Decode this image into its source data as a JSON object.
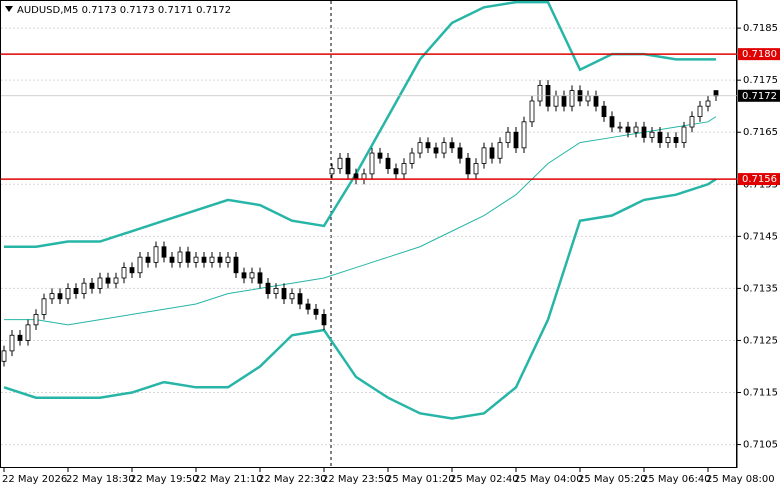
{
  "chart_data": {
    "type": "candlestick",
    "title": "AUDUSD,M5  0.7173 0.7173 0.7171 0.7172",
    "categories": [
      "22 May 2026",
      null,
      null,
      null,
      null,
      null,
      null,
      null,
      "22 May 18:30",
      null,
      null,
      null,
      null,
      null,
      null,
      null,
      "22 May 19:50",
      null,
      null,
      null,
      null,
      null,
      null,
      null,
      "22 May 21:10",
      null,
      null,
      null,
      null,
      null,
      null,
      null,
      "22 May 22:30",
      null,
      null,
      null,
      null,
      null,
      null,
      null,
      "22 May 23:50",
      null,
      null,
      null,
      null,
      null,
      null,
      null,
      "25 May 01:20",
      null,
      null,
      null,
      null,
      null,
      null,
      null,
      "25 May 02:40",
      null,
      null,
      null,
      null,
      null,
      null,
      null,
      "25 May 04:00",
      null,
      null,
      null,
      null,
      null,
      null,
      null,
      "25 May 05:20",
      null,
      null,
      null,
      null,
      null,
      null,
      null,
      "25 May 06:40",
      null,
      null,
      null,
      null,
      null,
      null,
      null,
      "25 May 08:00",
      null
    ],
    "candles": [
      [
        0.7121,
        0.7124,
        0.712,
        0.7123
      ],
      [
        0.7123,
        0.7127,
        0.7122,
        0.7126
      ],
      [
        0.7126,
        0.7127,
        0.7124,
        0.7125
      ],
      [
        0.7125,
        0.7129,
        0.7124,
        0.7128
      ],
      [
        0.7128,
        0.7131,
        0.7127,
        0.713
      ],
      [
        0.713,
        0.7134,
        0.7129,
        0.7133
      ],
      [
        0.7133,
        0.7135,
        0.7132,
        0.7134
      ],
      [
        0.7134,
        0.7135,
        0.7132,
        0.7133
      ],
      [
        0.7133,
        0.7136,
        0.7132,
        0.7135
      ],
      [
        0.7135,
        0.7136,
        0.7133,
        0.7134
      ],
      [
        0.7134,
        0.7137,
        0.7133,
        0.7136
      ],
      [
        0.7136,
        0.7137,
        0.7134,
        0.7135
      ],
      [
        0.7135,
        0.7138,
        0.7134,
        0.7137
      ],
      [
        0.7137,
        0.7138,
        0.7135,
        0.7136
      ],
      [
        0.7136,
        0.7138,
        0.7135,
        0.7137
      ],
      [
        0.7137,
        0.714,
        0.7136,
        0.7139
      ],
      [
        0.7139,
        0.714,
        0.7137,
        0.7138
      ],
      [
        0.7138,
        0.7142,
        0.7137,
        0.7141
      ],
      [
        0.7141,
        0.7142,
        0.7139,
        0.714
      ],
      [
        0.714,
        0.7144,
        0.7139,
        0.7143
      ],
      [
        0.7143,
        0.7144,
        0.714,
        0.7141
      ],
      [
        0.7141,
        0.7142,
        0.7139,
        0.714
      ],
      [
        0.714,
        0.7143,
        0.7139,
        0.7142
      ],
      [
        0.7142,
        0.7143,
        0.7139,
        0.714
      ],
      [
        0.714,
        0.7142,
        0.7139,
        0.7141
      ],
      [
        0.7141,
        0.7142,
        0.7139,
        0.714
      ],
      [
        0.714,
        0.7142,
        0.7139,
        0.7141
      ],
      [
        0.7141,
        0.7142,
        0.7139,
        0.714
      ],
      [
        0.714,
        0.7142,
        0.7139,
        0.7141
      ],
      [
        0.7141,
        0.7142,
        0.7137,
        0.7138
      ],
      [
        0.7138,
        0.7139,
        0.7136,
        0.7137
      ],
      [
        0.7137,
        0.7139,
        0.7136,
        0.7138
      ],
      [
        0.7138,
        0.7139,
        0.7135,
        0.7136
      ],
      [
        0.7136,
        0.7137,
        0.7133,
        0.7134
      ],
      [
        0.7134,
        0.7136,
        0.7133,
        0.7135
      ],
      [
        0.7135,
        0.7136,
        0.7132,
        0.7133
      ],
      [
        0.7133,
        0.7135,
        0.7132,
        0.7134
      ],
      [
        0.7134,
        0.7135,
        0.7131,
        0.7132
      ],
      [
        0.7132,
        0.7133,
        0.713,
        0.7131
      ],
      [
        0.7131,
        0.7132,
        0.7129,
        0.713
      ],
      [
        0.713,
        0.7131,
        0.7127,
        0.7128
      ],
      [
        0.7157,
        0.7159,
        0.7156,
        0.7158
      ],
      [
        0.7158,
        0.7161,
        0.7157,
        0.716
      ],
      [
        0.716,
        0.7161,
        0.7156,
        0.7157
      ],
      [
        0.7157,
        0.7158,
        0.7155,
        0.7156
      ],
      [
        0.7156,
        0.7158,
        0.7155,
        0.7157
      ],
      [
        0.7157,
        0.7162,
        0.7156,
        0.7161
      ],
      [
        0.7161,
        0.7162,
        0.7159,
        0.716
      ],
      [
        0.716,
        0.7161,
        0.7157,
        0.7158
      ],
      [
        0.7158,
        0.7159,
        0.7156,
        0.7157
      ],
      [
        0.7157,
        0.716,
        0.7156,
        0.7159
      ],
      [
        0.7159,
        0.7162,
        0.7158,
        0.7161
      ],
      [
        0.7161,
        0.7164,
        0.716,
        0.7163
      ],
      [
        0.7163,
        0.7164,
        0.7161,
        0.7162
      ],
      [
        0.7162,
        0.7163,
        0.716,
        0.7161
      ],
      [
        0.7161,
        0.7164,
        0.716,
        0.7163
      ],
      [
        0.7163,
        0.7164,
        0.7161,
        0.7162
      ],
      [
        0.7162,
        0.7163,
        0.7159,
        0.716
      ],
      [
        0.716,
        0.7161,
        0.7156,
        0.7157
      ],
      [
        0.7157,
        0.716,
        0.7156,
        0.7159
      ],
      [
        0.7159,
        0.7163,
        0.7158,
        0.7162
      ],
      [
        0.7162,
        0.7163,
        0.7159,
        0.716
      ],
      [
        0.716,
        0.7164,
        0.7159,
        0.7163
      ],
      [
        0.7163,
        0.7166,
        0.7162,
        0.7165
      ],
      [
        0.7165,
        0.7166,
        0.7161,
        0.7162
      ],
      [
        0.7162,
        0.7168,
        0.7161,
        0.7167
      ],
      [
        0.7167,
        0.7172,
        0.7166,
        0.7171
      ],
      [
        0.7171,
        0.7175,
        0.717,
        0.7174
      ],
      [
        0.7174,
        0.7175,
        0.7169,
        0.717
      ],
      [
        0.717,
        0.7173,
        0.7169,
        0.7172
      ],
      [
        0.7172,
        0.7173,
        0.7169,
        0.717
      ],
      [
        0.717,
        0.7174,
        0.7169,
        0.7173
      ],
      [
        0.7173,
        0.7174,
        0.717,
        0.7171
      ],
      [
        0.7171,
        0.7173,
        0.717,
        0.7172
      ],
      [
        0.7172,
        0.7173,
        0.7169,
        0.717
      ],
      [
        0.717,
        0.7171,
        0.7167,
        0.7168
      ],
      [
        0.7168,
        0.7169,
        0.7165,
        0.7166
      ],
      [
        0.7166,
        0.7167,
        0.7165,
        0.7166
      ],
      [
        0.7166,
        0.7167,
        0.7164,
        0.7165
      ],
      [
        0.7165,
        0.7167,
        0.7164,
        0.7166
      ],
      [
        0.7166,
        0.7167,
        0.7163,
        0.7164
      ],
      [
        0.7164,
        0.7166,
        0.7163,
        0.7165
      ],
      [
        0.7165,
        0.7166,
        0.7162,
        0.7163
      ],
      [
        0.7163,
        0.7165,
        0.7162,
        0.7164
      ],
      [
        0.7164,
        0.7165,
        0.7162,
        0.7163
      ],
      [
        0.7163,
        0.7167,
        0.7162,
        0.7166
      ],
      [
        0.7166,
        0.7169,
        0.7165,
        0.7168
      ],
      [
        0.7168,
        0.7171,
        0.7167,
        0.717
      ],
      [
        0.717,
        0.7172,
        0.7169,
        0.7171
      ],
      [
        0.7173,
        0.7173,
        0.7171,
        0.7172
      ]
    ],
    "bull_color": "#ffffff",
    "bear_color": "#000000",
    "bands": {
      "x": [
        0,
        4,
        8,
        12,
        16,
        20,
        24,
        28,
        32,
        36,
        40,
        44,
        48,
        52,
        56,
        60,
        64,
        68,
        72,
        76,
        80,
        84,
        88,
        89
      ],
      "series": [
        {
          "color": "#26b5a6",
          "width": 2.5,
          "values": [
            0.7143,
            0.7143,
            0.7144,
            0.7144,
            0.7146,
            0.7148,
            0.715,
            0.7152,
            0.7151,
            0.7148,
            0.7147,
            0.7157,
            0.7168,
            0.7179,
            0.7186,
            0.7189,
            0.719,
            0.719,
            0.7177,
            0.718,
            0.718,
            0.7179,
            0.7179,
            0.7179
          ]
        },
        {
          "color": "#26b5a6",
          "width": 1,
          "values": [
            0.7129,
            0.7129,
            0.7128,
            0.7129,
            0.713,
            0.7131,
            0.7132,
            0.7134,
            0.7135,
            0.7136,
            0.7137,
            0.7139,
            0.7141,
            0.7143,
            0.7146,
            0.7149,
            0.7153,
            0.7159,
            0.7163,
            0.7164,
            0.7165,
            0.7166,
            0.7167,
            0.7168
          ]
        },
        {
          "color": "#26b5a6",
          "width": 2.5,
          "values": [
            0.7116,
            0.7114,
            0.7114,
            0.7114,
            0.7115,
            0.7117,
            0.7116,
            0.7116,
            0.712,
            0.7126,
            0.7127,
            0.7118,
            0.7114,
            0.7111,
            0.711,
            0.7111,
            0.7116,
            0.7129,
            0.7148,
            0.7149,
            0.7152,
            0.7153,
            0.7155,
            0.7156
          ]
        }
      ]
    },
    "hlines": [
      {
        "value": 0.718,
        "label": "0.7180",
        "color": "#e00000"
      },
      {
        "value": 0.7156,
        "label": "0.7156",
        "color": "#e00000"
      }
    ],
    "price": 0.7172,
    "ylim": [
      0.71005,
      0.71904
    ],
    "yticks": [
      0.7105,
      0.7115,
      0.7125,
      0.7135,
      0.7145,
      0.7155,
      0.7165,
      0.7175,
      0.7185
    ],
    "grid": true
  }
}
